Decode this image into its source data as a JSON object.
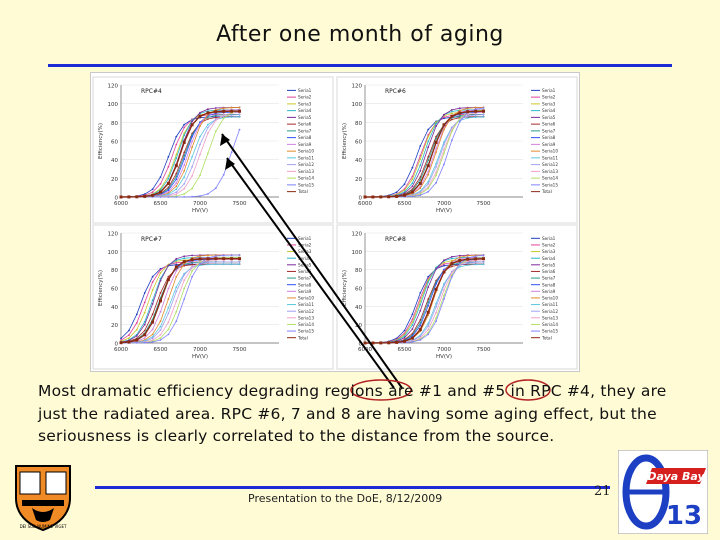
{
  "slide": {
    "title": "After one month of aging",
    "body": "Most dramatic efficiency degrading regions are #1 and #5 in RPC #4, they are just the radiated area. RPC #6, 7 and 8 are having some aging effect, but the seriousness is clearly correlated to the distance from the source.",
    "footer": "Presentation to the DoE, 8/12/2009",
    "page_number": "21",
    "logo_text": "Daya Bay",
    "logo_number": "13",
    "crest_text": "DEI SUB NUMINE VIGET"
  },
  "colors": {
    "rule": "#1d2bd6",
    "background": "#fffbd5",
    "highlight": "#b22222"
  },
  "chart_data": [
    {
      "type": "line",
      "title": "RPC#4",
      "ylabel": "Efficiency(%)",
      "xlabel": "HV(V)",
      "xlim": [
        6000,
        8000
      ],
      "ylim": [
        0,
        120
      ],
      "x_ticks": [
        "6000",
        "6500",
        "7000",
        "7500"
      ],
      "y_ticks": [
        "0",
        "20",
        "40",
        "60",
        "80",
        "100",
        "120"
      ],
      "legend": [
        "Seria1",
        "Seria2",
        "Seria3",
        "Seria4",
        "Seria5",
        "Seria6",
        "Seria7",
        "Seria8",
        "Seria9",
        "Seria10",
        "Seria11",
        "Seria12",
        "Seria13",
        "Seria14",
        "Seria15",
        "Total"
      ],
      "series_summary": {
        "midpoints_V": [
          6600,
          6650,
          6700,
          6720,
          6750,
          6780,
          6800,
          6820,
          6850,
          6880,
          6900,
          6950,
          7000,
          7100,
          7400
        ],
        "total_midpoint_V": 6750
      }
    },
    {
      "type": "line",
      "title": "RPC#6",
      "ylabel": "Efficiency(%)",
      "xlabel": "HV(V)",
      "xlim": [
        6000,
        8000
      ],
      "ylim": [
        0,
        120
      ],
      "x_ticks": [
        "6000",
        "6500",
        "7000",
        "7500"
      ],
      "y_ticks": [
        "0",
        "20",
        "40",
        "60",
        "80",
        "100",
        "120"
      ],
      "legend": [
        "Seria1",
        "Seria2",
        "Seria3",
        "Seria4",
        "Seria5",
        "Seria6",
        "Seria7",
        "Seria8",
        "Seria9",
        "Seria10",
        "Seria11",
        "Seria12",
        "Seria13",
        "Seria14",
        "Seria15",
        "Total"
      ],
      "series_summary": {
        "midpoints_V": [
          6650,
          6700,
          6720,
          6750,
          6780,
          6800,
          6820,
          6850,
          6880,
          6900,
          6930,
          6950,
          6980,
          7000,
          7050
        ],
        "total_midpoint_V": 6850
      }
    },
    {
      "type": "line",
      "title": "RPC#7",
      "ylabel": "Efficiency(%)",
      "xlabel": "HV(V)",
      "xlim": [
        6000,
        8000
      ],
      "ylim": [
        0,
        120
      ],
      "x_ticks": [
        "6000",
        "6500",
        "7000",
        "7500"
      ],
      "y_ticks": [
        "0",
        "20",
        "40",
        "60",
        "80",
        "100",
        "120"
      ],
      "legend": [
        "Seria1",
        "Seria2",
        "Seria3",
        "Seria4",
        "Seria5",
        "Seria6",
        "Seria7",
        "Seria8",
        "Seria9",
        "Seria10",
        "Seria11",
        "Seria12",
        "Seria13",
        "Seria14",
        "Seria15",
        "Total"
      ],
      "series_summary": {
        "midpoints_V": [
          6250,
          6300,
          6350,
          6400,
          6420,
          6450,
          6480,
          6500,
          6550,
          6600,
          6620,
          6650,
          6700,
          6750,
          6800
        ],
        "total_midpoint_V": 6500
      }
    },
    {
      "type": "line",
      "title": "RPC#8",
      "ylabel": "Efficiency(%)",
      "xlabel": "HV(V)",
      "xlim": [
        6000,
        8000
      ],
      "ylim": [
        0,
        120
      ],
      "x_ticks": [
        "6000",
        "6500",
        "7000",
        "7500"
      ],
      "y_ticks": [
        "0",
        "20",
        "40",
        "60",
        "80",
        "100",
        "120"
      ],
      "legend": [
        "Seria1",
        "Seria2",
        "Seria3",
        "Seria4",
        "Seria5",
        "Seria6",
        "Seria7",
        "Seria8",
        "Seria9",
        "Seria10",
        "Seria11",
        "Seria12",
        "Seria13",
        "Seria14",
        "Seria15",
        "Total"
      ],
      "series_summary": {
        "midpoints_V": [
          6650,
          6680,
          6700,
          6720,
          6750,
          6780,
          6800,
          6820,
          6850,
          6870,
          6900,
          6920,
          6950,
          6980,
          7000
        ],
        "total_midpoint_V": 6850
      }
    }
  ]
}
